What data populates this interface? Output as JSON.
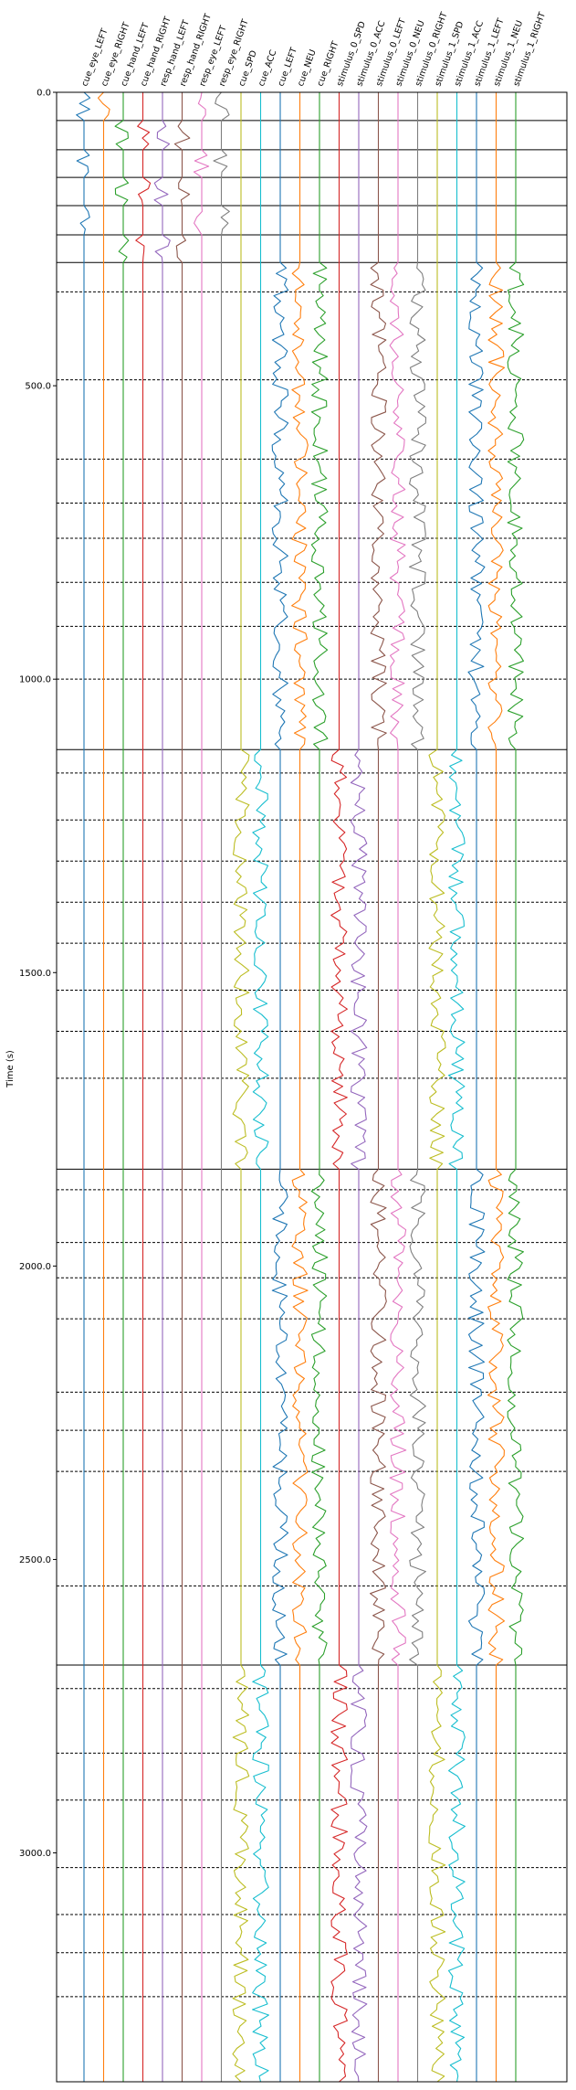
{
  "chart_data": {
    "type": "line",
    "title": "",
    "xlabel": "",
    "ylabel": "Time (s)",
    "ylim": [
      0.0,
      3390.0
    ],
    "y_inverted": true,
    "yticks": [
      0.0,
      500.0,
      1000.0,
      1500.0,
      2000.0,
      2500.0,
      3000.0
    ],
    "ytick_labels": [
      "0.0",
      "500.0",
      "1000.0",
      "1500.0",
      "2000.0",
      "2500.0",
      "3000.0"
    ],
    "grid": false,
    "legend": "none (channel names printed as rotated column labels along the top)",
    "channels": [
      {
        "name": "cue_eye_LEFT",
        "color": "#1f77b4"
      },
      {
        "name": "cue_eye_RIGHT",
        "color": "#ff7f0e"
      },
      {
        "name": "cue_hand_LEFT",
        "color": "#2ca02c"
      },
      {
        "name": "cue_hand_RIGHT",
        "color": "#d62728"
      },
      {
        "name": "resp_hand_LEFT",
        "color": "#9467bd"
      },
      {
        "name": "resp_hand_RIGHT",
        "color": "#8c564b"
      },
      {
        "name": "resp_eye_LEFT",
        "color": "#e377c2"
      },
      {
        "name": "resp_eye_RIGHT",
        "color": "#7f7f7f"
      },
      {
        "name": "cue_SPD",
        "color": "#bcbd22"
      },
      {
        "name": "cue_ACC",
        "color": "#17becf"
      },
      {
        "name": "cue_LEFT",
        "color": "#1f77b4"
      },
      {
        "name": "cue_NEU",
        "color": "#ff7f0e"
      },
      {
        "name": "cue_RIGHT",
        "color": "#2ca02c"
      },
      {
        "name": "stimulus_0_SPD",
        "color": "#d62728"
      },
      {
        "name": "stimulus_0_ACC",
        "color": "#9467bd"
      },
      {
        "name": "stimulus_0_LEFT",
        "color": "#8c564b"
      },
      {
        "name": "stimulus_0_NEU",
        "color": "#e377c2"
      },
      {
        "name": "stimulus_0_RIGHT",
        "color": "#7f7f7f"
      },
      {
        "name": "stimulus_1_SPD",
        "color": "#bcbd22"
      },
      {
        "name": "stimulus_1_ACC",
        "color": "#17becf"
      },
      {
        "name": "stimulus_1_LEFT",
        "color": "#1f77b4"
      },
      {
        "name": "stimulus_1_NEU",
        "color": "#ff7f0e"
      },
      {
        "name": "stimulus_1_RIGHT",
        "color": "#2ca02c"
      }
    ],
    "block_boundaries": [
      0,
      48,
      98,
      145,
      193,
      243,
      290,
      1120,
      1835,
      2680
    ],
    "trial_boundaries": [
      340,
      490,
      625,
      700,
      760,
      835,
      910,
      1000,
      1160,
      1240,
      1310,
      1380,
      1450,
      1530,
      1600,
      1680,
      1870,
      1960,
      2020,
      2090,
      2215,
      2280,
      2350,
      2545,
      2720,
      2830,
      2910,
      3025,
      3105,
      3170,
      3245
    ],
    "activity": [
      {
        "channel": "cue_eye_LEFT",
        "intervals": [
          [
            0,
            48
          ],
          [
            98,
            145
          ],
          [
            193,
            243
          ]
        ]
      },
      {
        "channel": "cue_eye_RIGHT",
        "intervals": [
          [
            0,
            48
          ]
        ]
      },
      {
        "channel": "cue_hand_LEFT",
        "intervals": [
          [
            48,
            98
          ],
          [
            145,
            193
          ],
          [
            243,
            290
          ]
        ]
      },
      {
        "channel": "cue_hand_RIGHT",
        "intervals": [
          [
            48,
            98
          ],
          [
            145,
            193
          ],
          [
            243,
            290
          ]
        ]
      },
      {
        "channel": "resp_hand_LEFT",
        "intervals": [
          [
            48,
            98
          ],
          [
            145,
            193
          ],
          [
            243,
            290
          ]
        ]
      },
      {
        "channel": "resp_hand_RIGHT",
        "intervals": [
          [
            48,
            98
          ],
          [
            145,
            193
          ],
          [
            243,
            290
          ]
        ]
      },
      {
        "channel": "resp_eye_LEFT",
        "intervals": [
          [
            0,
            48
          ],
          [
            98,
            145
          ],
          [
            193,
            243
          ]
        ]
      },
      {
        "channel": "resp_eye_RIGHT",
        "intervals": [
          [
            0,
            48
          ],
          [
            98,
            145
          ],
          [
            193,
            243
          ]
        ]
      },
      {
        "channel": "cue_SPD",
        "intervals": [
          [
            1120,
            1835
          ],
          [
            2680,
            3390
          ]
        ]
      },
      {
        "channel": "cue_ACC",
        "intervals": [
          [
            1120,
            1835
          ],
          [
            2680,
            3390
          ]
        ]
      },
      {
        "channel": "cue_LEFT",
        "intervals": [
          [
            290,
            1120
          ],
          [
            1835,
            2680
          ]
        ]
      },
      {
        "channel": "cue_NEU",
        "intervals": [
          [
            290,
            1120
          ],
          [
            1835,
            2680
          ]
        ]
      },
      {
        "channel": "cue_RIGHT",
        "intervals": [
          [
            290,
            1120
          ],
          [
            1835,
            2680
          ]
        ]
      },
      {
        "channel": "stimulus_0_SPD",
        "intervals": [
          [
            1120,
            1835
          ],
          [
            2680,
            3390
          ]
        ]
      },
      {
        "channel": "stimulus_0_ACC",
        "intervals": [
          [
            1120,
            1835
          ],
          [
            2680,
            3390
          ]
        ]
      },
      {
        "channel": "stimulus_0_LEFT",
        "intervals": [
          [
            290,
            1120
          ],
          [
            1835,
            2680
          ]
        ]
      },
      {
        "channel": "stimulus_0_NEU",
        "intervals": [
          [
            290,
            1120
          ],
          [
            1835,
            2680
          ]
        ]
      },
      {
        "channel": "stimulus_0_RIGHT",
        "intervals": [
          [
            290,
            1120
          ],
          [
            1835,
            2680
          ]
        ]
      },
      {
        "channel": "stimulus_1_SPD",
        "intervals": [
          [
            1120,
            1835
          ],
          [
            2680,
            3390
          ]
        ]
      },
      {
        "channel": "stimulus_1_ACC",
        "intervals": [
          [
            1120,
            1835
          ],
          [
            2680,
            3390
          ]
        ]
      },
      {
        "channel": "stimulus_1_LEFT",
        "intervals": [
          [
            290,
            1120
          ],
          [
            1835,
            2680
          ]
        ]
      },
      {
        "channel": "stimulus_1_NEU",
        "intervals": [
          [
            290,
            1120
          ],
          [
            1835,
            2680
          ]
        ]
      },
      {
        "channel": "stimulus_1_RIGHT",
        "intervals": [
          [
            290,
            1120
          ],
          [
            1835,
            2680
          ]
        ]
      }
    ]
  }
}
